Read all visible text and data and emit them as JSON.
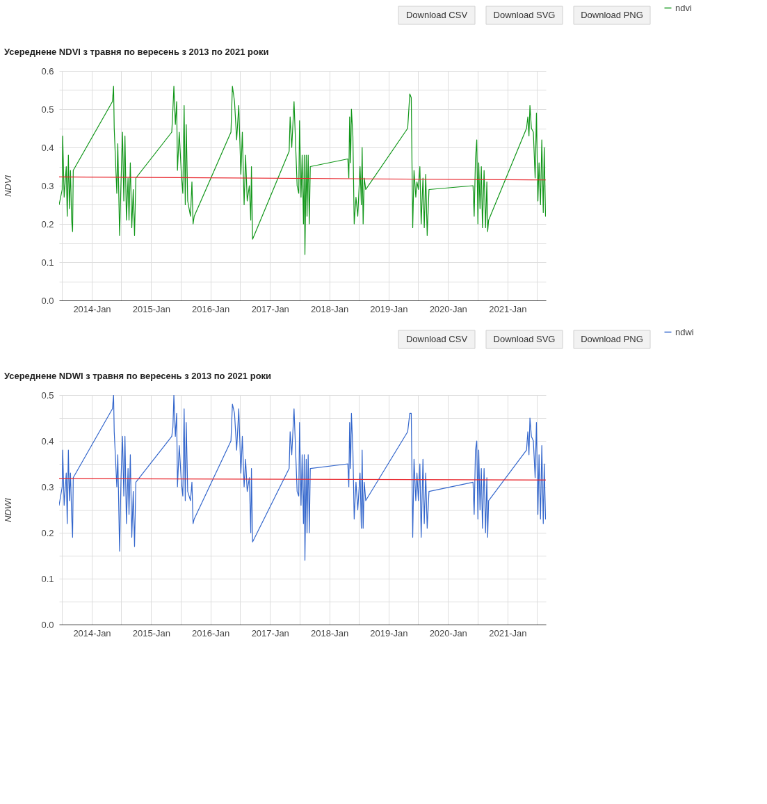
{
  "chart_data": [
    {
      "type": "line",
      "title": "Усереднене NDVI з травня по вересень з 2013 по 2021 роки",
      "ylabel": "NDVI",
      "annotations": [
        "Download CSV",
        "Download SVG",
        "Download PNG"
      ],
      "x": [
        "2013-06-14",
        "2013-07-03",
        "2013-07-06",
        "2013-07-15",
        "2013-07-28",
        "2013-08-03",
        "2013-08-10",
        "2013-08-16",
        "2013-08-23",
        "2013-08-30",
        "2013-09-05",
        "2013-09-09",
        "2014-05-08",
        "2014-05-15",
        "2014-05-19",
        "2014-06-04",
        "2014-06-10",
        "2014-06-21",
        "2014-06-30",
        "2014-07-09",
        "2014-07-17",
        "2014-07-24",
        "2014-08-02",
        "2014-08-12",
        "2014-08-18",
        "2014-08-26",
        "2014-09-04",
        "2014-09-13",
        "2014-09-21",
        "2014-09-29",
        "2015-05-08",
        "2015-05-15",
        "2015-05-21",
        "2015-05-30",
        "2015-06-07",
        "2015-06-12",
        "2015-06-23",
        "2015-07-06",
        "2015-07-15",
        "2015-07-23",
        "2015-07-30",
        "2015-08-05",
        "2015-08-14",
        "2015-08-31",
        "2015-09-09",
        "2015-09-16",
        "2015-09-23",
        "2016-05-06",
        "2016-05-15",
        "2016-05-28",
        "2016-06-10",
        "2016-06-23",
        "2016-07-06",
        "2016-07-15",
        "2016-07-26",
        "2016-08-04",
        "2016-08-14",
        "2016-08-27",
        "2016-09-05",
        "2016-09-09",
        "2016-09-16",
        "2017-04-29",
        "2017-05-05",
        "2017-05-15",
        "2017-05-29",
        "2017-06-17",
        "2017-06-27",
        "2017-07-02",
        "2017-07-11",
        "2017-07-18",
        "2017-07-26",
        "2017-07-31",
        "2017-08-04",
        "2017-08-12",
        "2017-08-17",
        "2017-08-24",
        "2017-08-31",
        "2017-09-06",
        "2018-04-25",
        "2018-05-01",
        "2018-05-06",
        "2018-05-12",
        "2018-05-17",
        "2018-05-26",
        "2018-06-03",
        "2018-06-14",
        "2018-06-25",
        "2018-07-09",
        "2018-07-17",
        "2018-07-22",
        "2018-07-28",
        "2018-08-04",
        "2018-08-13",
        "2019-04-28",
        "2019-05-11",
        "2019-05-20",
        "2019-05-29",
        "2019-06-06",
        "2019-06-17",
        "2019-06-24",
        "2019-07-03",
        "2019-07-12",
        "2019-07-20",
        "2019-07-31",
        "2019-08-08",
        "2019-08-17",
        "2019-08-26",
        "2019-09-06",
        "2020-06-03",
        "2020-06-10",
        "2020-06-18",
        "2020-06-26",
        "2020-07-03",
        "2020-07-08",
        "2020-07-16",
        "2020-07-24",
        "2020-07-31",
        "2020-08-10",
        "2020-08-19",
        "2020-08-27",
        "2020-09-01",
        "2020-09-07",
        "2021-04-28",
        "2021-05-06",
        "2021-05-13",
        "2021-05-19",
        "2021-05-28",
        "2021-06-09",
        "2021-06-20",
        "2021-06-28",
        "2021-07-07",
        "2021-07-14",
        "2021-07-23",
        "2021-07-31",
        "2021-08-09",
        "2021-08-15",
        "2021-08-23"
      ],
      "series": [
        {
          "name": "ndvi",
          "color": "#109618",
          "values": [
            0.25,
            0.29,
            0.43,
            0.27,
            0.35,
            0.22,
            0.38,
            0.24,
            0.34,
            0.21,
            0.18,
            0.34,
            0.52,
            0.56,
            0.45,
            0.28,
            0.41,
            0.17,
            0.31,
            0.44,
            0.26,
            0.43,
            0.21,
            0.32,
            0.21,
            0.36,
            0.19,
            0.29,
            0.17,
            0.32,
            0.44,
            0.5,
            0.56,
            0.46,
            0.52,
            0.34,
            0.44,
            0.33,
            0.28,
            0.51,
            0.25,
            0.46,
            0.26,
            0.22,
            0.31,
            0.2,
            0.22,
            0.44,
            0.56,
            0.52,
            0.42,
            0.51,
            0.33,
            0.44,
            0.25,
            0.38,
            0.26,
            0.3,
            0.21,
            0.35,
            0.16,
            0.39,
            0.48,
            0.4,
            0.52,
            0.3,
            0.28,
            0.47,
            0.27,
            0.38,
            0.2,
            0.38,
            0.12,
            0.38,
            0.22,
            0.38,
            0.2,
            0.35,
            0.37,
            0.32,
            0.48,
            0.36,
            0.5,
            0.43,
            0.2,
            0.27,
            0.22,
            0.35,
            0.25,
            0.4,
            0.2,
            0.32,
            0.29,
            0.45,
            0.54,
            0.53,
            0.19,
            0.34,
            0.27,
            0.31,
            0.29,
            0.35,
            0.2,
            0.32,
            0.19,
            0.33,
            0.17,
            0.29,
            0.3,
            0.22,
            0.37,
            0.42,
            0.2,
            0.36,
            0.24,
            0.35,
            0.19,
            0.34,
            0.19,
            0.31,
            0.18,
            0.21,
            0.45,
            0.48,
            0.43,
            0.51,
            0.45,
            0.44,
            0.32,
            0.49,
            0.26,
            0.36,
            0.25,
            0.42,
            0.23,
            0.4,
            0.22
          ]
        },
        {
          "type": "line",
          "color": "#e8232a",
          "x": [
            "2013-06-14",
            "2021-08-23"
          ],
          "values": [
            0.323,
            0.315
          ]
        }
      ],
      "xlim": [
        "2013-06-14",
        "2021-08-25"
      ],
      "xticks": [
        {
          "value": "2013-07-01",
          "label": null
        },
        {
          "value": "2014-01-01",
          "label": "2014-Jan"
        },
        {
          "value": "2014-07-01",
          "label": null
        },
        {
          "value": "2015-01-01",
          "label": "2015-Jan"
        },
        {
          "value": "2015-07-01",
          "label": null
        },
        {
          "value": "2016-01-01",
          "label": "2016-Jan"
        },
        {
          "value": "2016-07-01",
          "label": null
        },
        {
          "value": "2017-01-01",
          "label": "2017-Jan"
        },
        {
          "value": "2017-07-01",
          "label": null
        },
        {
          "value": "2018-01-01",
          "label": "2018-Jan"
        },
        {
          "value": "2018-07-01",
          "label": null
        },
        {
          "value": "2019-01-01",
          "label": "2019-Jan"
        },
        {
          "value": "2019-07-01",
          "label": null
        },
        {
          "value": "2020-01-01",
          "label": "2020-Jan"
        },
        {
          "value": "2020-07-01",
          "label": null
        },
        {
          "value": "2021-01-01",
          "label": "2021-Jan"
        },
        {
          "value": "2021-07-01",
          "label": null
        }
      ],
      "ylim": [
        0,
        0.6
      ],
      "yticks": [
        {
          "value": 0,
          "label": "0.0"
        },
        {
          "value": 0.05,
          "label": null
        },
        0.1,
        {
          "value": 0.15,
          "label": null
        },
        0.2,
        {
          "value": 0.25,
          "label": null
        },
        0.3,
        {
          "value": 0.35,
          "label": null
        },
        0.4,
        {
          "value": 0.45,
          "label": null
        },
        0.5,
        {
          "value": 0.55,
          "label": null
        },
        0.6
      ],
      "grid": true,
      "legend": "right",
      "line_style": "solid"
    },
    {
      "type": "line",
      "title": "Усереднене NDWI з травня по вересень з 2013 по 2021 роки",
      "ylabel": "NDWI",
      "annotations": [
        "Download CSV",
        "Download SVG",
        "Download PNG"
      ],
      "x": [
        "2013-06-14",
        "2013-07-03",
        "2013-07-06",
        "2013-07-15",
        "2013-07-28",
        "2013-08-03",
        "2013-08-10",
        "2013-08-16",
        "2013-08-23",
        "2013-08-30",
        "2013-09-05",
        "2013-09-09",
        "2014-05-08",
        "2014-05-15",
        "2014-05-19",
        "2014-06-04",
        "2014-06-10",
        "2014-06-21",
        "2014-06-30",
        "2014-07-09",
        "2014-07-17",
        "2014-07-24",
        "2014-08-02",
        "2014-08-12",
        "2014-08-18",
        "2014-08-26",
        "2014-09-04",
        "2014-09-13",
        "2014-09-21",
        "2014-09-29",
        "2015-05-08",
        "2015-05-15",
        "2015-05-21",
        "2015-05-30",
        "2015-06-07",
        "2015-06-12",
        "2015-06-23",
        "2015-07-06",
        "2015-07-15",
        "2015-07-23",
        "2015-07-30",
        "2015-08-05",
        "2015-08-14",
        "2015-08-31",
        "2015-09-09",
        "2015-09-16",
        "2015-09-23",
        "2016-05-06",
        "2016-05-15",
        "2016-05-28",
        "2016-06-10",
        "2016-06-23",
        "2016-07-06",
        "2016-07-15",
        "2016-07-26",
        "2016-08-04",
        "2016-08-14",
        "2016-08-27",
        "2016-09-05",
        "2016-09-09",
        "2016-09-16",
        "2017-04-29",
        "2017-05-05",
        "2017-05-15",
        "2017-05-29",
        "2017-06-17",
        "2017-06-27",
        "2017-07-02",
        "2017-07-11",
        "2017-07-18",
        "2017-07-26",
        "2017-07-31",
        "2017-08-04",
        "2017-08-12",
        "2017-08-17",
        "2017-08-24",
        "2017-08-31",
        "2017-09-06",
        "2018-04-25",
        "2018-05-01",
        "2018-05-06",
        "2018-05-12",
        "2018-05-17",
        "2018-05-26",
        "2018-06-03",
        "2018-06-14",
        "2018-06-25",
        "2018-07-09",
        "2018-07-17",
        "2018-07-22",
        "2018-07-28",
        "2018-08-04",
        "2018-08-13",
        "2019-04-28",
        "2019-05-11",
        "2019-05-20",
        "2019-05-29",
        "2019-06-06",
        "2019-06-17",
        "2019-06-24",
        "2019-07-03",
        "2019-07-12",
        "2019-07-20",
        "2019-07-31",
        "2019-08-08",
        "2019-08-17",
        "2019-08-26",
        "2019-09-06",
        "2020-06-03",
        "2020-06-10",
        "2020-06-18",
        "2020-06-26",
        "2020-07-03",
        "2020-07-08",
        "2020-07-16",
        "2020-07-24",
        "2020-07-31",
        "2020-08-10",
        "2020-08-19",
        "2020-08-27",
        "2020-09-01",
        "2020-09-07",
        "2021-04-28",
        "2021-05-06",
        "2021-05-13",
        "2021-05-19",
        "2021-05-28",
        "2021-06-09",
        "2021-06-20",
        "2021-06-28",
        "2021-07-07",
        "2021-07-14",
        "2021-07-23",
        "2021-07-31",
        "2021-08-09",
        "2021-08-15",
        "2021-08-23"
      ],
      "series": [
        {
          "name": "ndwi",
          "color": "#3366cc",
          "values": [
            0.26,
            0.3,
            0.38,
            0.26,
            0.33,
            0.22,
            0.38,
            0.27,
            0.33,
            0.24,
            0.19,
            0.32,
            0.47,
            0.5,
            0.42,
            0.3,
            0.37,
            0.16,
            0.32,
            0.41,
            0.28,
            0.41,
            0.22,
            0.34,
            0.24,
            0.37,
            0.19,
            0.29,
            0.17,
            0.31,
            0.41,
            0.43,
            0.5,
            0.41,
            0.46,
            0.3,
            0.39,
            0.31,
            0.28,
            0.47,
            0.27,
            0.44,
            0.29,
            0.27,
            0.31,
            0.22,
            0.23,
            0.4,
            0.48,
            0.46,
            0.38,
            0.47,
            0.33,
            0.41,
            0.3,
            0.36,
            0.29,
            0.32,
            0.2,
            0.34,
            0.18,
            0.34,
            0.42,
            0.37,
            0.47,
            0.29,
            0.28,
            0.44,
            0.26,
            0.37,
            0.22,
            0.37,
            0.14,
            0.36,
            0.2,
            0.37,
            0.2,
            0.34,
            0.35,
            0.3,
            0.44,
            0.34,
            0.46,
            0.38,
            0.23,
            0.31,
            0.25,
            0.33,
            0.21,
            0.38,
            0.21,
            0.31,
            0.27,
            0.42,
            0.46,
            0.46,
            0.19,
            0.36,
            0.27,
            0.33,
            0.27,
            0.35,
            0.19,
            0.36,
            0.22,
            0.33,
            0.21,
            0.29,
            0.31,
            0.24,
            0.38,
            0.4,
            0.23,
            0.38,
            0.25,
            0.34,
            0.21,
            0.34,
            0.2,
            0.32,
            0.19,
            0.27,
            0.38,
            0.42,
            0.37,
            0.45,
            0.41,
            0.4,
            0.32,
            0.44,
            0.24,
            0.37,
            0.23,
            0.39,
            0.22,
            0.35,
            0.23
          ]
        },
        {
          "type": "line",
          "color": "#e8232a",
          "x": [
            "2013-06-14",
            "2021-08-23"
          ],
          "values": [
            0.318,
            0.315
          ]
        }
      ],
      "xlim": [
        "2013-06-14",
        "2021-08-25"
      ],
      "xticks": [
        {
          "value": "2013-07-01",
          "label": null
        },
        {
          "value": "2014-01-01",
          "label": "2014-Jan"
        },
        {
          "value": "2014-07-01",
          "label": null
        },
        {
          "value": "2015-01-01",
          "label": "2015-Jan"
        },
        {
          "value": "2015-07-01",
          "label": null
        },
        {
          "value": "2016-01-01",
          "label": "2016-Jan"
        },
        {
          "value": "2016-07-01",
          "label": null
        },
        {
          "value": "2017-01-01",
          "label": "2017-Jan"
        },
        {
          "value": "2017-07-01",
          "label": null
        },
        {
          "value": "2018-01-01",
          "label": "2018-Jan"
        },
        {
          "value": "2018-07-01",
          "label": null
        },
        {
          "value": "2019-01-01",
          "label": "2019-Jan"
        },
        {
          "value": "2019-07-01",
          "label": null
        },
        {
          "value": "2020-01-01",
          "label": "2020-Jan"
        },
        {
          "value": "2020-07-01",
          "label": null
        },
        {
          "value": "2021-01-01",
          "label": "2021-Jan"
        },
        {
          "value": "2021-07-01",
          "label": null
        }
      ],
      "ylim": [
        0,
        0.5
      ],
      "yticks": [
        {
          "value": 0,
          "label": "0.0"
        },
        {
          "value": 0.05,
          "label": null
        },
        0.1,
        {
          "value": 0.15,
          "label": null
        },
        0.2,
        {
          "value": 0.25,
          "label": null
        },
        0.3,
        {
          "value": 0.35,
          "label": null
        },
        0.4,
        {
          "value": 0.45,
          "label": null
        },
        0.5
      ],
      "grid": true,
      "legend": "right",
      "line_style": "solid"
    }
  ]
}
